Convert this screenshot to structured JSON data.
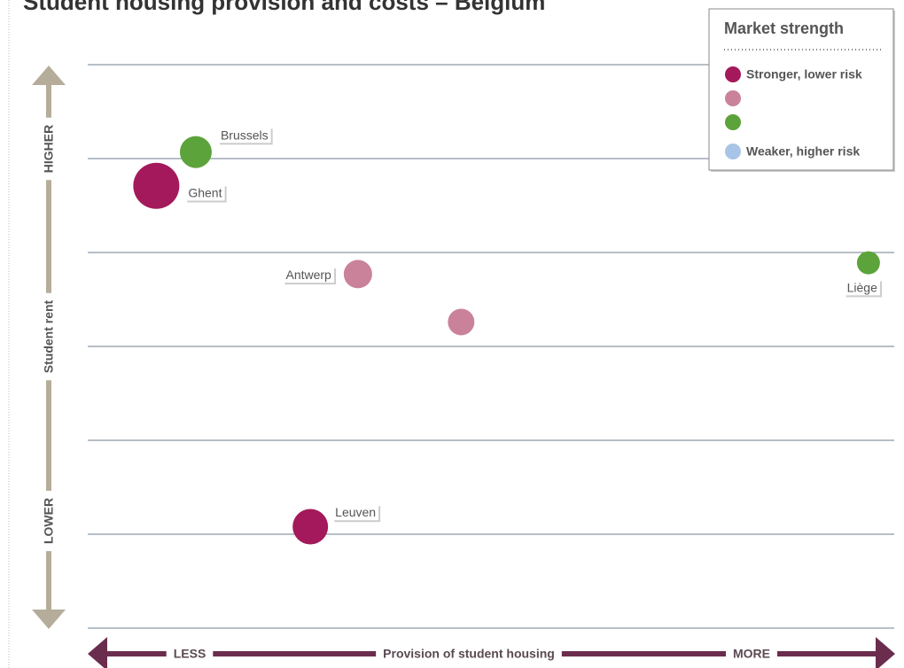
{
  "chart_data": {
    "type": "bubble",
    "title": "Student housing provision and costs – Belgium",
    "x_label": "Provision of student housing",
    "x_low": "LESS",
    "x_high": "MORE",
    "y_label": "Student rent",
    "y_low": "LOWER",
    "y_high": "HIGHER",
    "legend_title": "Market strength",
    "legend": "upper right",
    "grid": true,
    "xlim": [
      0,
      100
    ],
    "ylim": [
      0,
      6
    ],
    "yticks": [
      0,
      1,
      2,
      3,
      4,
      5,
      6
    ],
    "series": [
      {
        "name": "Stronger, lower risk",
        "color": "#a3195b",
        "labels": [
          "Ghent",
          "Leuven"
        ],
        "x": [
          8.5,
          27.6
        ],
        "values": [
          4.71,
          1.08
        ],
        "sizes": [
          26,
          20
        ]
      },
      {
        "name": null,
        "color": "#c98299",
        "labels": [
          "Antwerp",
          null
        ],
        "x": [
          33.5,
          46.3
        ],
        "values": [
          3.77,
          3.26
        ],
        "sizes": [
          16,
          15
        ]
      },
      {
        "name": null,
        "color": "#5ba33a",
        "labels": [
          "Brussels",
          "Liège"
        ],
        "x": [
          13.4,
          96.8
        ],
        "values": [
          5.07,
          3.89
        ],
        "sizes": [
          18,
          13
        ]
      },
      {
        "name": "Weaker, higher risk",
        "color": "#a8c4e6",
        "labels": [],
        "x": [],
        "values": [],
        "sizes": []
      }
    ]
  }
}
